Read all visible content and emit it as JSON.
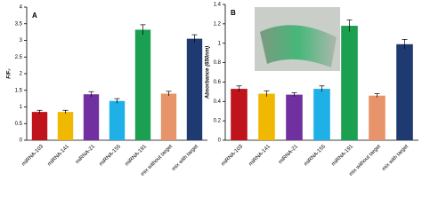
{
  "chart_data": [
    {
      "type": "bar",
      "title": "A",
      "y_label": "F/F₀",
      "categories": [
        "miRNA-103",
        "miRNA-141",
        "miRNA-21",
        "miRNA-155",
        "miRNA-191",
        "mix without target",
        "mix with target"
      ],
      "values": [
        0.85,
        0.85,
        1.38,
        1.18,
        3.32,
        1.4,
        3.05
      ],
      "errors": [
        0.05,
        0.05,
        0.08,
        0.07,
        0.15,
        0.07,
        0.12
      ],
      "colors": [
        "#c0141c",
        "#f0b800",
        "#7030a0",
        "#1fb0e8",
        "#1aa050",
        "#e8946a",
        "#1f3a70"
      ],
      "ylim": [
        0,
        4
      ],
      "yticks": [
        0,
        0.5,
        1,
        1.5,
        2,
        2.5,
        3,
        3.5,
        4
      ]
    },
    {
      "type": "bar",
      "title": "B",
      "y_label": "Absorbance (650nm)",
      "categories": [
        "miRNA-103",
        "miRNA-141",
        "miRNA-21",
        "miRNA-155",
        "miRNA-191",
        "mix without target",
        "mix with target"
      ],
      "values": [
        0.53,
        0.48,
        0.47,
        0.53,
        1.18,
        0.46,
        0.99
      ],
      "errors": [
        0.03,
        0.03,
        0.02,
        0.03,
        0.06,
        0.02,
        0.05
      ],
      "colors": [
        "#c0141c",
        "#f0b800",
        "#7030a0",
        "#1fb0e8",
        "#1aa050",
        "#e8946a",
        "#1f3a70"
      ],
      "ylim": [
        0,
        1.4
      ],
      "yticks": [
        0,
        0.2,
        0.4,
        0.6,
        0.8,
        1,
        1.2,
        1.4
      ]
    }
  ]
}
